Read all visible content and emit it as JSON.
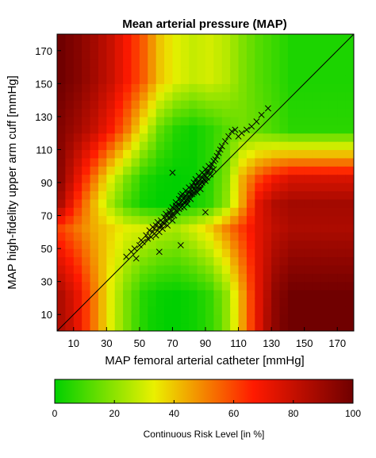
{
  "chart_data": {
    "type": "heatmap",
    "title": "Mean arterial pressure (MAP)",
    "xlabel": "MAP femoral arterial catheter [mmHg]",
    "ylabel": "MAP high-fidelity upper arm cuff [mmHg]",
    "xlim": [
      0,
      180
    ],
    "ylim": [
      0,
      180
    ],
    "xticks": [
      10,
      30,
      50,
      70,
      90,
      110,
      130,
      150,
      170
    ],
    "yticks": [
      10,
      30,
      50,
      70,
      90,
      110,
      130,
      150,
      170
    ],
    "identity_line": true,
    "heatmap_bin_mmHg": 5,
    "heatmap_cells": [
      [
        0,
        5,
        85
      ],
      [
        5,
        5,
        80
      ],
      [
        10,
        5,
        72
      ],
      [
        15,
        5,
        62
      ],
      [
        20,
        5,
        52
      ],
      [
        25,
        5,
        42
      ],
      [
        30,
        5,
        32
      ],
      [
        35,
        5,
        24
      ],
      [
        40,
        5,
        17
      ],
      [
        45,
        5,
        10
      ],
      [
        50,
        5,
        5
      ],
      [
        55,
        5,
        2
      ],
      [
        60,
        5,
        1
      ],
      [
        65,
        5,
        0
      ],
      [
        70,
        5,
        0
      ],
      [
        75,
        5,
        1
      ],
      [
        80,
        5,
        2
      ],
      [
        85,
        5,
        4
      ],
      [
        90,
        5,
        7
      ],
      [
        95,
        5,
        12
      ],
      [
        100,
        5,
        20
      ],
      [
        105,
        5,
        32
      ],
      [
        110,
        5,
        46
      ],
      [
        115,
        5,
        60
      ],
      [
        120,
        5,
        74
      ],
      [
        125,
        5,
        85
      ],
      [
        130,
        5,
        93
      ],
      [
        135,
        5,
        98
      ],
      [
        140,
        5,
        100
      ],
      [
        0,
        20,
        85
      ],
      [
        10,
        20,
        72
      ],
      [
        20,
        20,
        52
      ],
      [
        30,
        20,
        32
      ],
      [
        40,
        20,
        17
      ],
      [
        50,
        20,
        5
      ],
      [
        60,
        20,
        1
      ],
      [
        70,
        20,
        0
      ],
      [
        80,
        20,
        2
      ],
      [
        90,
        20,
        7
      ],
      [
        100,
        20,
        20
      ],
      [
        110,
        20,
        46
      ],
      [
        120,
        20,
        74
      ],
      [
        130,
        20,
        93
      ],
      [
        140,
        20,
        100
      ],
      [
        0,
        60,
        60
      ],
      [
        10,
        60,
        52
      ],
      [
        20,
        60,
        44
      ],
      [
        30,
        60,
        38
      ],
      [
        40,
        60,
        32
      ],
      [
        50,
        60,
        30
      ],
      [
        60,
        60,
        26
      ],
      [
        70,
        60,
        24
      ],
      [
        80,
        60,
        30
      ],
      [
        90,
        60,
        38
      ],
      [
        100,
        60,
        50
      ],
      [
        110,
        60,
        62
      ],
      [
        120,
        60,
        74
      ],
      [
        130,
        60,
        82
      ],
      [
        140,
        60,
        86
      ],
      [
        0,
        75,
        85
      ],
      [
        10,
        75,
        62
      ],
      [
        20,
        75,
        42
      ],
      [
        30,
        75,
        24
      ],
      [
        40,
        75,
        10
      ],
      [
        50,
        75,
        2
      ],
      [
        60,
        75,
        0
      ],
      [
        70,
        75,
        0
      ],
      [
        80,
        75,
        2
      ],
      [
        90,
        75,
        7
      ],
      [
        100,
        75,
        20
      ],
      [
        110,
        75,
        46
      ],
      [
        120,
        75,
        74
      ],
      [
        130,
        75,
        85
      ],
      [
        140,
        75,
        88
      ],
      [
        0,
        90,
        92
      ],
      [
        10,
        90,
        72
      ],
      [
        20,
        90,
        52
      ],
      [
        30,
        90,
        32
      ],
      [
        40,
        90,
        17
      ],
      [
        50,
        90,
        5
      ],
      [
        60,
        90,
        1
      ],
      [
        70,
        90,
        0
      ],
      [
        80,
        90,
        1
      ],
      [
        90,
        90,
        6
      ],
      [
        100,
        90,
        18
      ],
      [
        110,
        90,
        44
      ],
      [
        120,
        90,
        60
      ],
      [
        130,
        90,
        70
      ],
      [
        140,
        90,
        76
      ],
      [
        0,
        120,
        95
      ],
      [
        10,
        120,
        88
      ],
      [
        20,
        120,
        80
      ],
      [
        30,
        120,
        68
      ],
      [
        40,
        120,
        52
      ],
      [
        50,
        120,
        32
      ],
      [
        60,
        120,
        14
      ],
      [
        70,
        120,
        5
      ],
      [
        80,
        120,
        2
      ],
      [
        90,
        120,
        6
      ],
      [
        100,
        120,
        12
      ],
      [
        110,
        120,
        16
      ],
      [
        120,
        120,
        14
      ],
      [
        130,
        120,
        10
      ],
      [
        140,
        120,
        6
      ],
      [
        0,
        150,
        100
      ],
      [
        10,
        150,
        95
      ],
      [
        20,
        150,
        88
      ],
      [
        30,
        150,
        80
      ],
      [
        40,
        150,
        68
      ],
      [
        50,
        150,
        56
      ],
      [
        60,
        150,
        40
      ],
      [
        70,
        150,
        32
      ],
      [
        80,
        150,
        28
      ],
      [
        90,
        150,
        30
      ],
      [
        100,
        150,
        26
      ],
      [
        110,
        150,
        18
      ],
      [
        120,
        150,
        12
      ],
      [
        130,
        150,
        8
      ],
      [
        140,
        150,
        4
      ]
    ],
    "points": [
      [
        42,
        45
      ],
      [
        45,
        48
      ],
      [
        47,
        50
      ],
      [
        48,
        44
      ],
      [
        50,
        52
      ],
      [
        51,
        55
      ],
      [
        52,
        54
      ],
      [
        54,
        58
      ],
      [
        55,
        56
      ],
      [
        56,
        61
      ],
      [
        57,
        57
      ],
      [
        58,
        63
      ],
      [
        58,
        60
      ],
      [
        59,
        62
      ],
      [
        60,
        64
      ],
      [
        60,
        58
      ],
      [
        61,
        66
      ],
      [
        62,
        63
      ],
      [
        62,
        60
      ],
      [
        63,
        67
      ],
      [
        63,
        64
      ],
      [
        64,
        62
      ],
      [
        64,
        66
      ],
      [
        65,
        69
      ],
      [
        65,
        65
      ],
      [
        66,
        71
      ],
      [
        66,
        67
      ],
      [
        67,
        64
      ],
      [
        67,
        70
      ],
      [
        68,
        72
      ],
      [
        68,
        68
      ],
      [
        69,
        73
      ],
      [
        69,
        70
      ],
      [
        70,
        75
      ],
      [
        70,
        71
      ],
      [
        70,
        67
      ],
      [
        71,
        74
      ],
      [
        71,
        70
      ],
      [
        72,
        76
      ],
      [
        72,
        73
      ],
      [
        72,
        78
      ],
      [
        73,
        75
      ],
      [
        73,
        72
      ],
      [
        74,
        77
      ],
      [
        74,
        80
      ],
      [
        74,
        74
      ],
      [
        75,
        78
      ],
      [
        75,
        82
      ],
      [
        75,
        75
      ],
      [
        76,
        79
      ],
      [
        76,
        76
      ],
      [
        76,
        83
      ],
      [
        77,
        81
      ],
      [
        77,
        78
      ],
      [
        77,
        75
      ],
      [
        78,
        82
      ],
      [
        78,
        79
      ],
      [
        78,
        85
      ],
      [
        79,
        80
      ],
      [
        79,
        83
      ],
      [
        79,
        77
      ],
      [
        80,
        84
      ],
      [
        80,
        81
      ],
      [
        80,
        87
      ],
      [
        81,
        83
      ],
      [
        81,
        86
      ],
      [
        81,
        80
      ],
      [
        82,
        85
      ],
      [
        82,
        88
      ],
      [
        82,
        83
      ],
      [
        83,
        86
      ],
      [
        83,
        90
      ],
      [
        83,
        84
      ],
      [
        84,
        88
      ],
      [
        84,
        85
      ],
      [
        84,
        92
      ],
      [
        85,
        87
      ],
      [
        85,
        90
      ],
      [
        85,
        84
      ],
      [
        86,
        91
      ],
      [
        86,
        88
      ],
      [
        86,
        94
      ],
      [
        87,
        89
      ],
      [
        87,
        92
      ],
      [
        87,
        86
      ],
      [
        88,
        93
      ],
      [
        88,
        90
      ],
      [
        88,
        96
      ],
      [
        89,
        92
      ],
      [
        89,
        95
      ],
      [
        90,
        94
      ],
      [
        90,
        91
      ],
      [
        90,
        98
      ],
      [
        91,
        96
      ],
      [
        91,
        93
      ],
      [
        92,
        97
      ],
      [
        92,
        100
      ],
      [
        93,
        99
      ],
      [
        93,
        95
      ],
      [
        94,
        101
      ],
      [
        95,
        103
      ],
      [
        95,
        98
      ],
      [
        96,
        104
      ],
      [
        97,
        106
      ],
      [
        98,
        108
      ],
      [
        99,
        110
      ],
      [
        100,
        112
      ],
      [
        102,
        115
      ],
      [
        104,
        118
      ],
      [
        106,
        121
      ],
      [
        108,
        122
      ],
      [
        110,
        118
      ],
      [
        112,
        120
      ],
      [
        115,
        122
      ],
      [
        118,
        124
      ],
      [
        121,
        127
      ],
      [
        124,
        131
      ],
      [
        128,
        135
      ],
      [
        62,
        48
      ],
      [
        75,
        52
      ],
      [
        70,
        96
      ],
      [
        90,
        72
      ]
    ],
    "colorbar": {
      "label": "Continuous Risk Level [in %]",
      "range": [
        0,
        100
      ],
      "ticks": [
        0,
        20,
        40,
        60,
        80,
        100
      ],
      "colors": [
        "#00d000",
        "#eaf000",
        "#ff1a00",
        "#700000"
      ]
    }
  }
}
